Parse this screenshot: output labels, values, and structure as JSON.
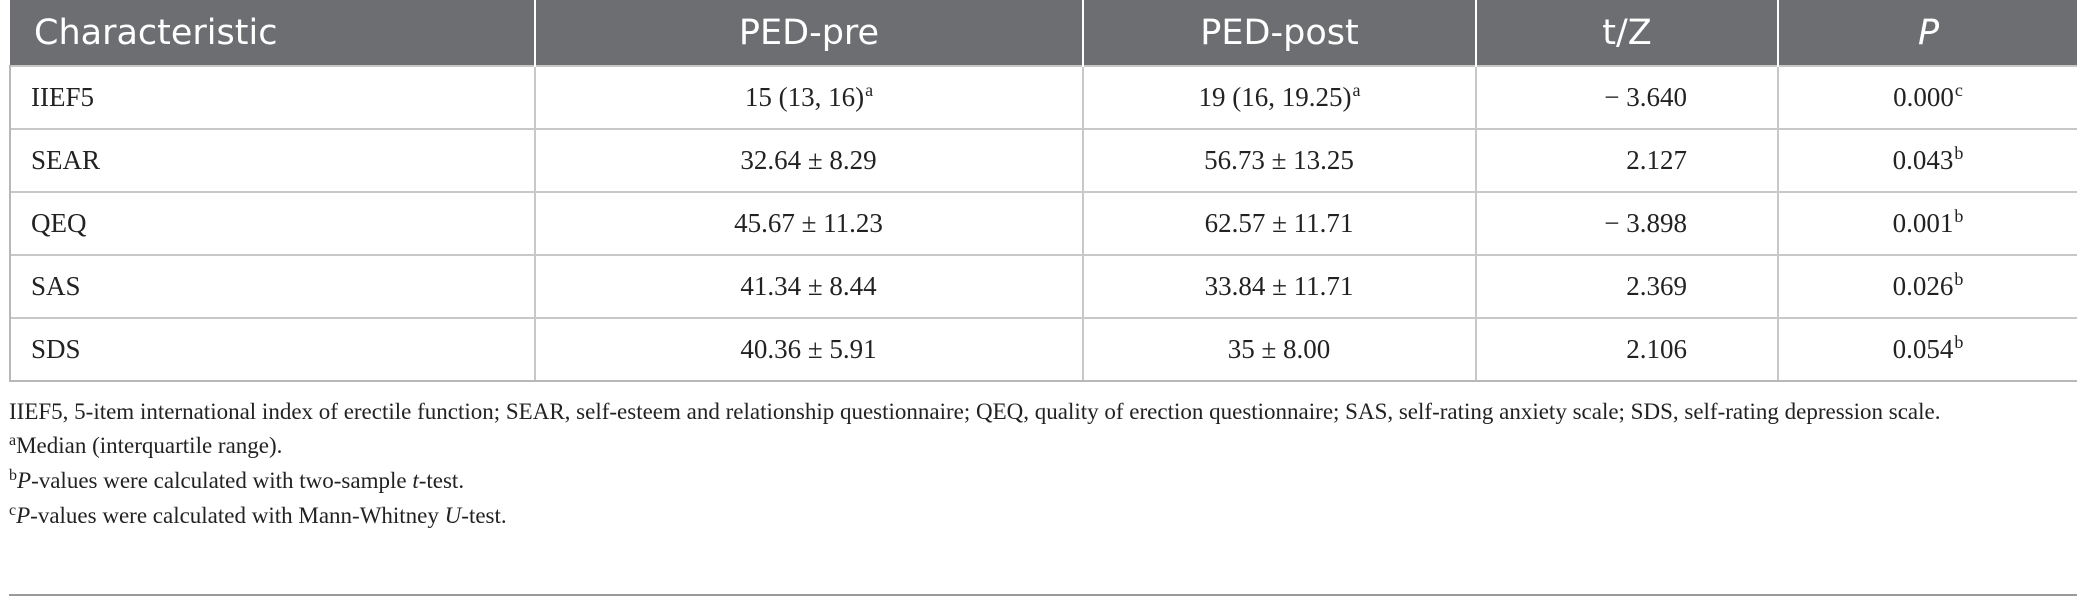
{
  "table": {
    "headers": [
      "Characteristic",
      "PED-pre",
      "PED-post",
      "t/Z",
      "P"
    ],
    "rows": [
      {
        "characteristic": "IIEF5",
        "pre": "15 (13, 16)",
        "pre_sup": "a",
        "post": "19 (16, 19.25)",
        "post_sup": "a",
        "tz": "− 3.640",
        "p": "0.000",
        "p_sup": "c"
      },
      {
        "characteristic": "SEAR",
        "pre": "32.64 ± 8.29",
        "pre_sup": "",
        "post": "56.73 ± 13.25",
        "post_sup": "",
        "tz": "2.127",
        "p": "0.043",
        "p_sup": "b"
      },
      {
        "characteristic": "QEQ",
        "pre": "45.67 ± 11.23",
        "pre_sup": "",
        "post": "62.57 ± 11.71",
        "post_sup": "",
        "tz": "− 3.898",
        "p": "0.001",
        "p_sup": "b"
      },
      {
        "characteristic": "SAS",
        "pre": "41.34 ± 8.44",
        "pre_sup": "",
        "post": "33.84 ± 11.71",
        "post_sup": "",
        "tz": "2.369",
        "p": "0.026",
        "p_sup": "b"
      },
      {
        "characteristic": "SDS",
        "pre": "40.36 ± 5.91",
        "pre_sup": "",
        "post": "35 ± 8.00",
        "post_sup": "",
        "tz": "2.106",
        "p": "0.054",
        "p_sup": "b"
      }
    ]
  },
  "footnotes": {
    "abbreviations": "IIEF5, 5-item international index of erectile function; SEAR, self-esteem and relationship questionnaire; QEQ, quality of erection questionnaire; SAS, self-rating anxiety scale; SDS, self-rating depression scale.",
    "a_mark": "a",
    "a_text": "Median (interquartile range).",
    "b_mark": "b",
    "b_p": "P",
    "b_mid": "-values were calculated with two-sample ",
    "b_t": "t",
    "b_end": "-test.",
    "c_mark": "c",
    "c_p": "P",
    "c_mid": "-values were calculated with Mann-Whitney ",
    "c_u": "U",
    "c_end": "-test."
  }
}
